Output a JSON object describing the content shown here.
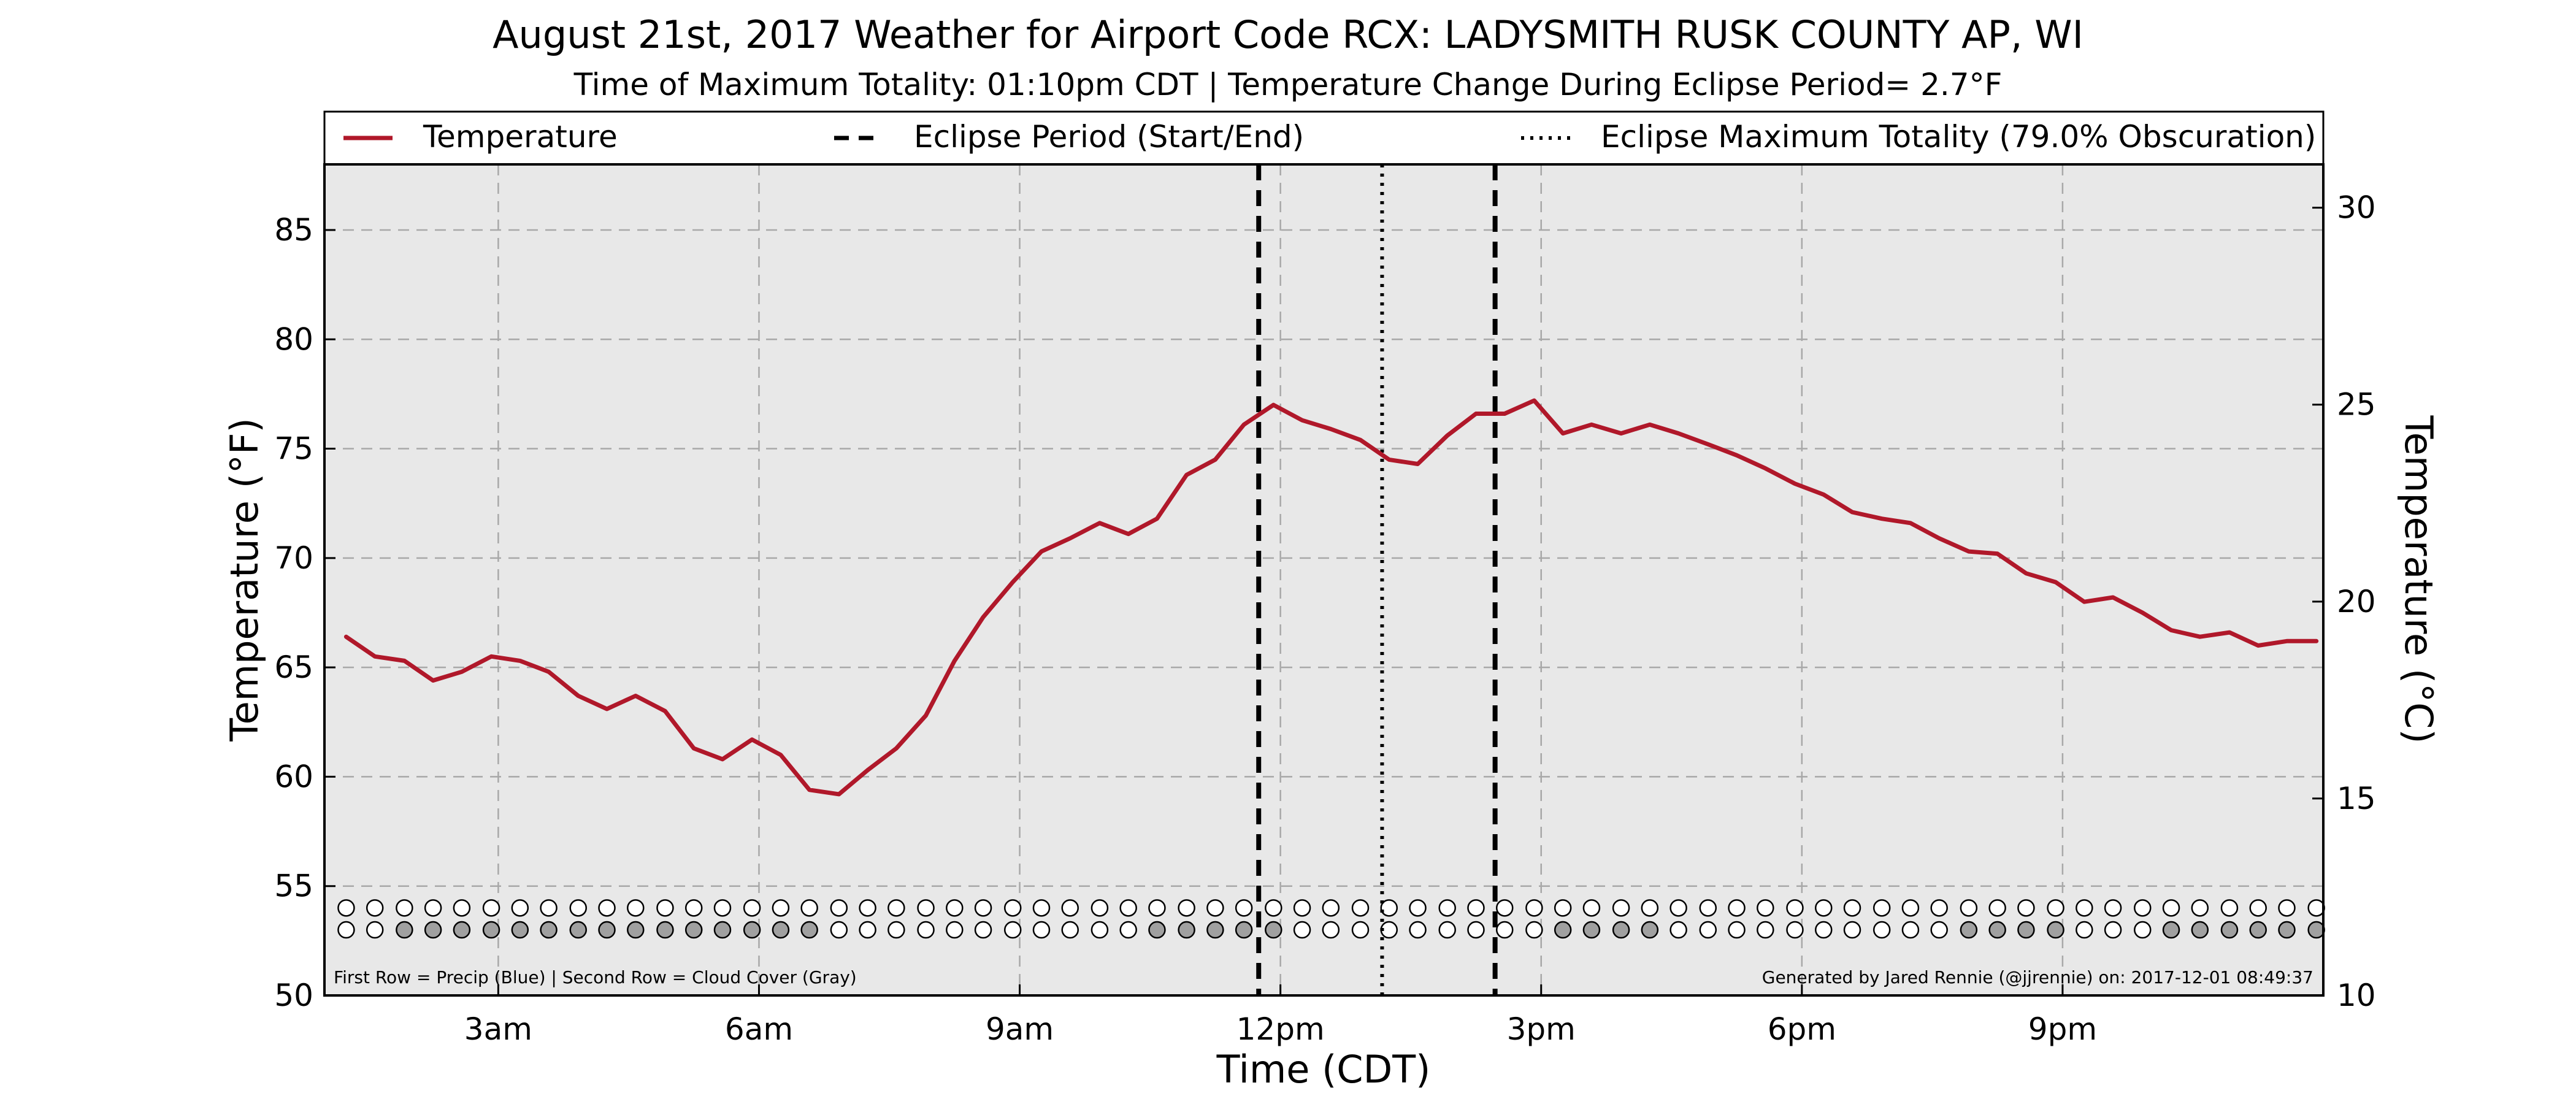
{
  "title": "August 21st, 2017 Weather for Airport Code RCX: LADYSMITH RUSK COUNTY AP, WI",
  "subtitle": "Time of Maximum Totality: 01:10pm CDT | Temperature Change During Eclipse Period= 2.7°F",
  "legend": {
    "placement": "top",
    "items": [
      {
        "key": "temperature",
        "label": "Temperature",
        "style": "solid",
        "color": "#b0182a"
      },
      {
        "key": "eclipse_period",
        "label": "Eclipse Period (Start/End)",
        "style": "dashed",
        "color": "#000000"
      },
      {
        "key": "eclipse_max",
        "label": "Eclipse Maximum Totality (79.0% Obscuration)",
        "style": "dotted",
        "color": "#000000"
      }
    ]
  },
  "footnote_left": "First Row = Precip (Blue) | Second Row = Cloud Cover (Gray)",
  "footnote_right": "Generated by Jared Rennie (@jjrennie) on: 2017-12-01 08:49:37",
  "colors": {
    "plot_background": "#e8e8e8",
    "temperature_line": "#b0182a",
    "grid": "#a8a8a8",
    "cloud_fill": "#a0a0a0",
    "marker_empty": "#ffffff"
  },
  "chart_data": {
    "type": "line",
    "xlabel": "Time (CDT)",
    "ylabel": "Temperature (°F)",
    "ylabel_right": "Temperature (°C)",
    "xlim_hours": [
      1.0,
      24.0
    ],
    "ylim": [
      50,
      88
    ],
    "ylim_right_celsius": [
      10,
      31.1
    ],
    "grid": true,
    "x_ticks": [
      {
        "hour": 3,
        "label": "3am"
      },
      {
        "hour": 6,
        "label": "6am"
      },
      {
        "hour": 9,
        "label": "9am"
      },
      {
        "hour": 12,
        "label": "12pm"
      },
      {
        "hour": 15,
        "label": "3pm"
      },
      {
        "hour": 18,
        "label": "6pm"
      },
      {
        "hour": 21,
        "label": "9pm"
      }
    ],
    "y_ticks": [
      50,
      55,
      60,
      65,
      70,
      75,
      80,
      85
    ],
    "y_ticks_right": [
      10,
      15,
      20,
      25,
      30
    ],
    "series": [
      {
        "name": "Temperature",
        "x_hours": [
          1.25,
          1.58,
          1.92,
          2.25,
          2.58,
          2.92,
          3.25,
          3.58,
          3.92,
          4.25,
          4.58,
          4.92,
          5.25,
          5.58,
          5.92,
          6.25,
          6.58,
          6.92,
          7.25,
          7.58,
          7.92,
          8.25,
          8.58,
          8.92,
          9.25,
          9.58,
          9.92,
          10.25,
          10.58,
          10.92,
          11.25,
          11.58,
          11.92,
          12.25,
          12.58,
          12.92,
          13.25,
          13.58,
          13.92,
          14.25,
          14.58,
          14.92,
          15.25,
          15.58,
          15.92,
          16.25,
          16.58,
          16.92,
          17.25,
          17.58,
          17.92,
          18.25,
          18.58,
          18.92,
          19.25,
          19.58,
          19.92,
          20.25,
          20.58,
          20.92,
          21.25,
          21.58,
          21.92,
          22.25,
          22.58,
          22.92,
          23.25,
          23.58,
          23.92
        ],
        "values": [
          66.4,
          65.5,
          65.3,
          64.4,
          64.8,
          65.5,
          65.3,
          64.8,
          63.7,
          63.1,
          63.7,
          63.0,
          61.3,
          60.8,
          61.7,
          61.0,
          59.4,
          59.2,
          60.3,
          61.3,
          62.8,
          65.3,
          67.3,
          68.9,
          70.3,
          70.9,
          71.6,
          71.1,
          71.8,
          73.8,
          74.5,
          76.1,
          77.0,
          76.3,
          75.9,
          75.4,
          74.5,
          74.3,
          75.6,
          76.6,
          76.6,
          77.2,
          75.7,
          76.1,
          75.7,
          76.1,
          75.7,
          75.2,
          74.7,
          74.1,
          73.4,
          72.9,
          72.1,
          71.8,
          71.6,
          70.9,
          70.3,
          70.2,
          69.3,
          68.9,
          68.0,
          68.2,
          67.5,
          66.7,
          66.4,
          66.6,
          66.0,
          66.2,
          66.2
        ]
      }
    ],
    "eclipse_period_hours": [
      11.75,
      14.47
    ],
    "eclipse_max_totality_hour": 13.17,
    "marker_rows": {
      "precip_label": "First Row = Precip (Blue)",
      "cloud_label": "Second Row = Cloud Cover (Gray)",
      "x_hours": [
        1.25,
        1.58,
        1.92,
        2.25,
        2.58,
        2.92,
        3.25,
        3.58,
        3.92,
        4.25,
        4.58,
        4.92,
        5.25,
        5.58,
        5.92,
        6.25,
        6.58,
        6.92,
        7.25,
        7.58,
        7.92,
        8.25,
        8.58,
        8.92,
        9.25,
        9.58,
        9.92,
        10.25,
        10.58,
        10.92,
        11.25,
        11.58,
        11.92,
        12.25,
        12.58,
        12.92,
        13.25,
        13.58,
        13.92,
        14.25,
        14.58,
        14.92,
        15.25,
        15.58,
        15.92,
        16.25,
        16.58,
        16.92,
        17.25,
        17.58,
        17.92,
        18.25,
        18.58,
        18.92,
        19.25,
        19.58,
        19.92,
        20.25,
        20.58,
        20.92,
        21.25,
        21.58,
        21.92,
        22.25,
        22.58,
        22.92,
        23.25,
        23.58,
        23.92
      ],
      "precip_y": 54.0,
      "cloud_y": 53.0,
      "precip": [
        0,
        0,
        0,
        0,
        0,
        0,
        0,
        0,
        0,
        0,
        0,
        0,
        0,
        0,
        0,
        0,
        0,
        0,
        0,
        0,
        0,
        0,
        0,
        0,
        0,
        0,
        0,
        0,
        0,
        0,
        0,
        0,
        0,
        0,
        0,
        0,
        0,
        0,
        0,
        0,
        0,
        0,
        0,
        0,
        0,
        0,
        0,
        0,
        0,
        0,
        0,
        0,
        0,
        0,
        0,
        0,
        0,
        0,
        0,
        0,
        0,
        0,
        0,
        0,
        0,
        0,
        0,
        0,
        0
      ],
      "cloud": [
        0,
        0,
        1,
        1,
        1,
        1,
        1,
        1,
        1,
        1,
        1,
        1,
        1,
        1,
        1,
        1,
        1,
        0,
        0,
        0,
        0,
        0,
        0,
        0,
        0,
        0,
        0,
        0,
        1,
        1,
        1,
        1,
        1,
        0,
        0,
        0,
        0,
        0,
        0,
        0,
        0,
        0,
        1,
        1,
        1,
        1,
        0,
        0,
        0,
        0,
        0,
        0,
        0,
        0,
        0,
        0,
        1,
        1,
        1,
        1,
        0,
        0,
        0,
        1,
        1,
        1,
        1,
        1,
        1
      ]
    }
  }
}
